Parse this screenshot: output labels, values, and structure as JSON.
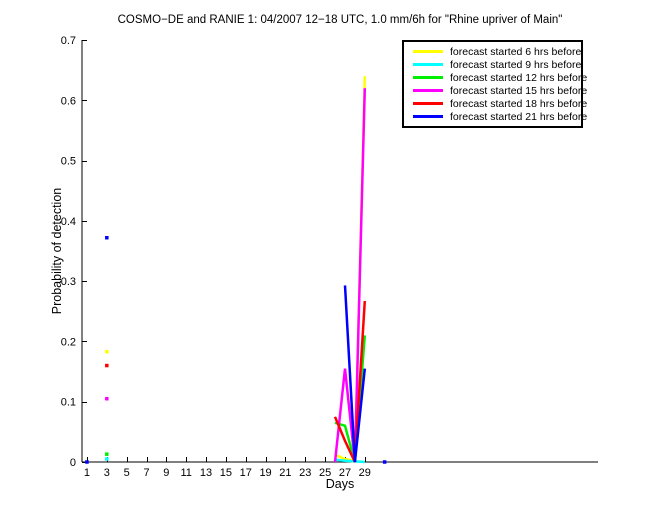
{
  "chart_data": {
    "type": "line",
    "title": "COSMO−DE and RANIE 1: 04/2007 12−18 UTC, 1.0 mm/6h for \"Rhine upriver of Main\"",
    "xlabel": "Days",
    "ylabel": "Probability of detection",
    "xlim": [
      0.5,
      52.5
    ],
    "ylim": [
      0,
      0.7
    ],
    "xticks": [
      1,
      3,
      5,
      7,
      9,
      11,
      13,
      15,
      17,
      19,
      21,
      23,
      25,
      27,
      29
    ],
    "yticks": [
      0,
      0.1,
      0.2,
      0.3,
      0.4,
      0.5,
      0.6,
      0.7
    ],
    "grid": false,
    "legend_position": "top-right",
    "axis_color": "#000000",
    "background_color": "#ffffff",
    "line_width": 2.5,
    "series": [
      {
        "name": "forecast started 6 hrs before",
        "color": "#ffff00",
        "segments": [
          [
            [
              3,
              0.183
            ]
          ],
          [
            [
              26,
              0.012
            ],
            [
              27,
              0.005
            ],
            [
              28,
              0.002
            ],
            [
              29,
              0.64
            ]
          ]
        ]
      },
      {
        "name": "forecast started 9 hrs before",
        "color": "#00ffff",
        "segments": [
          [
            [
              3,
              0.005
            ]
          ],
          [
            [
              26,
              0.004
            ],
            [
              27,
              0.002
            ],
            [
              28,
              0.001
            ],
            [
              29,
              0.0
            ]
          ]
        ]
      },
      {
        "name": "forecast started 12 hrs before",
        "color": "#00ee00",
        "segments": [
          [
            [
              3,
              0.013
            ]
          ],
          [
            [
              26,
              0.065
            ],
            [
              27,
              0.06
            ],
            [
              28,
              0.0
            ],
            [
              29,
              0.21
            ]
          ]
        ]
      },
      {
        "name": "forecast started 15 hrs before",
        "color": "#ff00ff",
        "segments": [
          [
            [
              3,
              0.105
            ]
          ],
          [
            [
              26,
              0.0
            ],
            [
              27,
              0.155
            ],
            [
              28,
              0.0
            ],
            [
              29,
              0.62
            ]
          ]
        ]
      },
      {
        "name": "forecast started 18 hrs before",
        "color": "#ff0000",
        "segments": [
          [
            [
              3,
              0.16
            ]
          ],
          [
            [
              26,
              0.075
            ],
            [
              27,
              0.035
            ],
            [
              28,
              0.0
            ],
            [
              29,
              0.267
            ]
          ]
        ]
      },
      {
        "name": "forecast started 21 hrs before",
        "color": "#0000ff",
        "segments": [
          [
            [
              1,
              0.0
            ]
          ],
          [
            [
              3,
              0.372
            ]
          ],
          [
            [
              27,
              0.293
            ],
            [
              28,
              0.0
            ],
            [
              29,
              0.155
            ]
          ],
          [
            [
              31,
              0.0
            ]
          ]
        ]
      }
    ]
  }
}
